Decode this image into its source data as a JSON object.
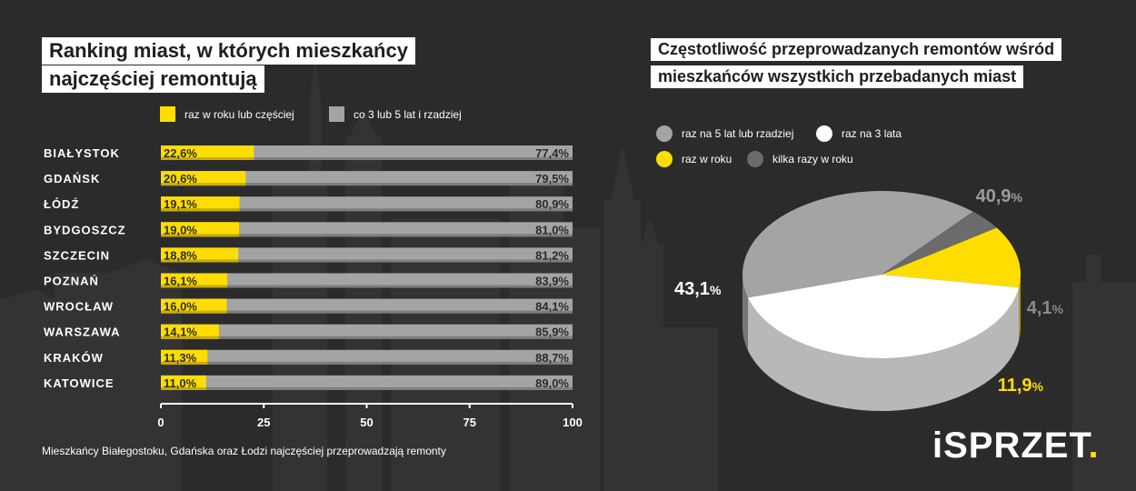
{
  "left": {
    "title_line1": "Ranking miast, w których mieszkańcy",
    "title_line2": "najczęściej remontują",
    "legend": [
      {
        "label": "raz w roku lub częściej",
        "color": "#ffdd00"
      },
      {
        "label": "co 3 lub 5 lat i rzadziej",
        "color": "#a4a4a4"
      }
    ]
  },
  "right": {
    "title_line1": "Częstotliwość przeprowadzanych remontów wśród",
    "title_line2": "mieszkańców wszystkich przebadanych miast",
    "legend": [
      {
        "label": "raz na 5 lat lub rzadziej",
        "color": "#a4a4a4"
      },
      {
        "label": "raz na 3 lata",
        "color": "#ffffff"
      },
      {
        "label": "raz w roku",
        "color": "#ffdd00"
      },
      {
        "label": "kilka razy w roku",
        "color": "#6b6b6b"
      }
    ]
  },
  "footnote": "Mieszkańcy Białegostoku, Gdańska oraz Łodzi najczęściej przeprowadzają remonty",
  "brand": {
    "main": "iSPRZET",
    "dot": "."
  },
  "chart_data": [
    {
      "type": "bar",
      "stacked": true,
      "orientation": "horizontal",
      "categories": [
        "BIAŁYSTOK",
        "GDAŃSK",
        "ŁÓDŹ",
        "BYDGOSZCZ",
        "SZCZECIN",
        "POZNAŃ",
        "WROCŁAW",
        "WARSZAWA",
        "KRAKÓW",
        "KATOWICE"
      ],
      "series": [
        {
          "name": "raz w roku lub częściej",
          "color": "#ffdd00",
          "values": [
            22.6,
            20.6,
            19.1,
            19.0,
            18.8,
            16.1,
            16.0,
            14.1,
            11.3,
            11.0
          ],
          "labels": [
            "22,6%",
            "20,6%",
            "19,1%",
            "19,0%",
            "18,8%",
            "16,1%",
            "16,0%",
            "14,1%",
            "11,3%",
            "11,0%"
          ]
        },
        {
          "name": "co 3 lub 5 lat i rzadziej",
          "color": "#a4a4a4",
          "values": [
            77.4,
            79.5,
            80.9,
            81.0,
            81.2,
            83.9,
            84.1,
            85.9,
            88.7,
            89.0
          ],
          "labels": [
            "77,4%",
            "79,5%",
            "80,9%",
            "81,0%",
            "81,2%",
            "83,9%",
            "84,1%",
            "85,9%",
            "88,7%",
            "89,0%"
          ]
        }
      ],
      "xlim": [
        0,
        100
      ],
      "xticks": [
        "0",
        "25",
        "50",
        "75",
        "100"
      ]
    },
    {
      "type": "pie",
      "style": "3d",
      "slices": [
        {
          "name": "raz na 5 lat lub rzadziej",
          "value": 40.9,
          "label_num": "40,9",
          "label_pct": "%",
          "color": "#a4a4a4",
          "label_color": "#9b9b9b"
        },
        {
          "name": "kilka razy w roku",
          "value": 4.1,
          "label_num": "4,1",
          "label_pct": "%",
          "color": "#6b6b6b",
          "label_color": "#8a8a8a"
        },
        {
          "name": "raz w roku",
          "value": 11.9,
          "label_num": "11,9",
          "label_pct": "%",
          "color": "#ffdd00",
          "label_color": "#ffdd00"
        },
        {
          "name": "raz na 3 lata",
          "value": 43.1,
          "label_num": "43,1",
          "label_pct": "%",
          "color": "#ffffff",
          "label_color": "#ffffff"
        }
      ]
    }
  ]
}
